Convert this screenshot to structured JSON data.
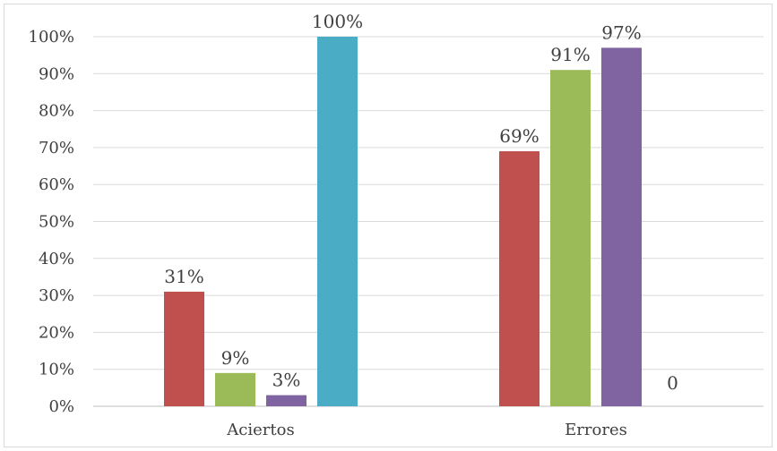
{
  "chart_data": {
    "type": "bar",
    "categories": [
      "Aciertos",
      "Errores"
    ],
    "series": [
      {
        "color": "#c0504d",
        "values": [
          0.31,
          0.69
        ],
        "labels": [
          "31%",
          "69%"
        ]
      },
      {
        "color": "#9bbb59",
        "values": [
          0.09,
          0.91
        ],
        "labels": [
          "9%",
          "91%"
        ]
      },
      {
        "color": "#8064a2",
        "values": [
          0.03,
          0.97
        ],
        "labels": [
          "3%",
          "97%"
        ]
      },
      {
        "color": "#4bacc6",
        "values": [
          1.0,
          0
        ],
        "labels": [
          "100%",
          "0"
        ]
      }
    ],
    "ylim": [
      0,
      1
    ],
    "y_ticks": [
      "0%",
      "10%",
      "20%",
      "30%",
      "40%",
      "50%",
      "60%",
      "70%",
      "80%",
      "90%",
      "100%"
    ],
    "grid": true,
    "legend": "none"
  }
}
